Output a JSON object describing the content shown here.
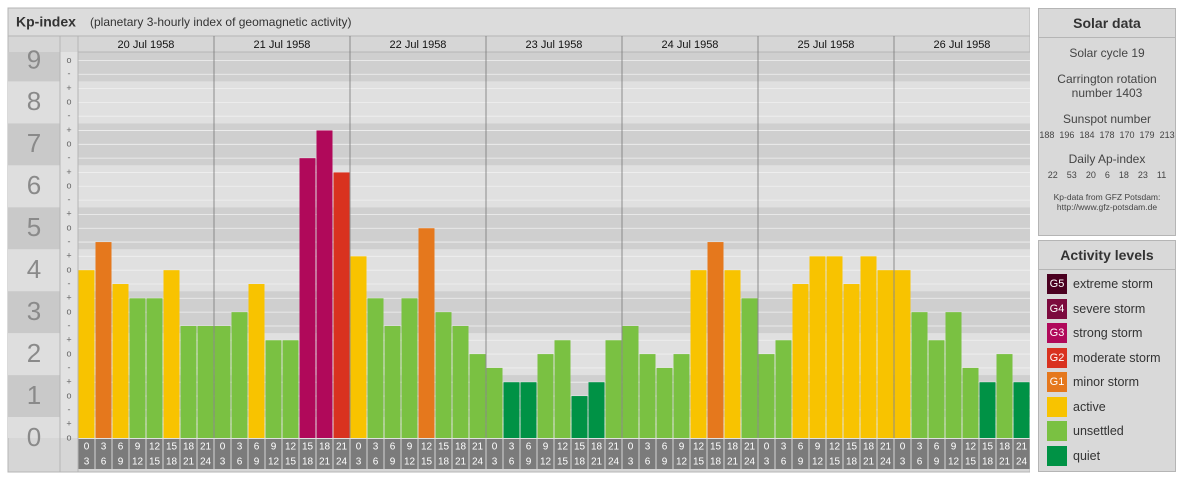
{
  "chart_data": {
    "type": "bar",
    "title": "Kp-index",
    "subtitle": "(planetary 3-hourly index of geomagnetic activity)",
    "hours": [
      "0",
      "3",
      "6",
      "9",
      "12",
      "15",
      "18",
      "21",
      "24"
    ],
    "days": [
      {
        "date": "20 Jul 1958",
        "values": [
          4,
          4.67,
          3.67,
          3.33,
          3.33,
          4,
          2.67,
          2.67
        ],
        "colors": [
          "#f8c300",
          "#e5781d",
          "#f8c300",
          "#7ac142",
          "#7ac142",
          "#f8c300",
          "#7ac142",
          "#7ac142"
        ]
      },
      {
        "date": "21 Jul 1958",
        "values": [
          2.67,
          3,
          3.67,
          2.33,
          2.33,
          6.67,
          7.33,
          6.33
        ],
        "colors": [
          "#7ac142",
          "#7ac142",
          "#f8c300",
          "#7ac142",
          "#7ac142",
          "#b0095a",
          "#b0095a",
          "#d9321f"
        ]
      },
      {
        "date": "22 Jul 1958",
        "values": [
          4.33,
          3.33,
          2.67,
          3.33,
          5,
          3,
          2.67,
          2
        ],
        "colors": [
          "#f8c300",
          "#7ac142",
          "#7ac142",
          "#7ac142",
          "#e5781d",
          "#7ac142",
          "#7ac142",
          "#7ac142"
        ]
      },
      {
        "date": "23 Jul 1958",
        "values": [
          1.67,
          1.33,
          1.33,
          2,
          2.33,
          1,
          1.33,
          2.33
        ],
        "colors": [
          "#7ac142",
          "#009245",
          "#009245",
          "#7ac142",
          "#7ac142",
          "#009245",
          "#009245",
          "#7ac142"
        ]
      },
      {
        "date": "24 Jul 1958",
        "values": [
          2.67,
          2,
          1.67,
          2,
          4,
          4.67,
          4,
          3.33
        ],
        "colors": [
          "#7ac142",
          "#7ac142",
          "#7ac142",
          "#7ac142",
          "#f8c300",
          "#e5781d",
          "#f8c300",
          "#7ac142"
        ]
      },
      {
        "date": "25 Jul 1958",
        "values": [
          2,
          2.33,
          3.67,
          4.33,
          4.33,
          3.67,
          4.33,
          4
        ],
        "colors": [
          "#7ac142",
          "#7ac142",
          "#f8c300",
          "#f8c300",
          "#f8c300",
          "#f8c300",
          "#f8c300",
          "#f8c300"
        ]
      },
      {
        "date": "26 Jul 1958",
        "values": [
          4,
          3,
          2.33,
          3,
          1.67,
          1.33,
          2,
          1.33
        ],
        "colors": [
          "#f8c300",
          "#7ac142",
          "#7ac142",
          "#7ac142",
          "#7ac142",
          "#009245",
          "#7ac142",
          "#009245"
        ]
      }
    ],
    "ylim": [
      0,
      9.2
    ],
    "yticks": [
      0,
      1,
      2,
      3,
      4,
      5,
      6,
      7,
      8,
      9
    ],
    "yticks_minor": [
      {
        "value": 0,
        "label": "o"
      },
      {
        "value": 0.33,
        "label": "+"
      },
      {
        "value": 0.67,
        "label": "-"
      },
      {
        "value": 1,
        "label": "o"
      },
      {
        "value": 1.33,
        "label": "+"
      },
      {
        "value": 1.67,
        "label": "-"
      },
      {
        "value": 2,
        "label": "o"
      },
      {
        "value": 2.33,
        "label": "+"
      },
      {
        "value": 2.67,
        "label": "-"
      },
      {
        "value": 3,
        "label": "o"
      },
      {
        "value": 3.33,
        "label": "+"
      },
      {
        "value": 3.67,
        "label": "-"
      },
      {
        "value": 4,
        "label": "o"
      },
      {
        "value": 4.33,
        "label": "+"
      },
      {
        "value": 4.67,
        "label": "-"
      },
      {
        "value": 5,
        "label": "o"
      },
      {
        "value": 5.33,
        "label": "+"
      },
      {
        "value": 5.67,
        "label": "-"
      },
      {
        "value": 6,
        "label": "o"
      },
      {
        "value": 6.33,
        "label": "+"
      },
      {
        "value": 6.67,
        "label": "-"
      },
      {
        "value": 7,
        "label": "o"
      },
      {
        "value": 7.33,
        "label": "+"
      },
      {
        "value": 7.67,
        "label": "-"
      },
      {
        "value": 8,
        "label": "o"
      },
      {
        "value": 8.33,
        "label": "+"
      },
      {
        "value": 8.67,
        "label": "-"
      },
      {
        "value": 9,
        "label": "o"
      }
    ],
    "grid": true
  },
  "sidebar": {
    "solar": {
      "title": "Solar data",
      "cycle": "Solar cycle 19",
      "carrington": [
        "Carrington rotation",
        "number 1403"
      ],
      "sunspot_title": "Sunspot number",
      "sunspots": [
        188,
        196,
        184,
        178,
        170,
        179,
        213
      ],
      "ap_title": "Daily Ap-index",
      "ap": [
        22,
        53,
        20,
        6,
        18,
        23,
        11
      ],
      "source": [
        "Kp-data from GFZ Potsdam:",
        "http://www.gfz-potsdam.de"
      ]
    },
    "levels": {
      "title": "Activity levels",
      "items": [
        {
          "badge": "G5",
          "name": "extreme storm",
          "color": "#4a0020"
        },
        {
          "badge": "G4",
          "name": "severe storm",
          "color": "#7c0a3e"
        },
        {
          "badge": "G3",
          "name": "strong storm",
          "color": "#b0095a"
        },
        {
          "badge": "G2",
          "name": "moderate storm",
          "color": "#d9321f"
        },
        {
          "badge": "G1",
          "name": "minor storm",
          "color": "#e5781d"
        },
        {
          "name": "active",
          "color": "#f8c300"
        },
        {
          "name": "unsettled",
          "color": "#7ac142"
        },
        {
          "name": "quiet",
          "color": "#009245"
        }
      ]
    }
  }
}
